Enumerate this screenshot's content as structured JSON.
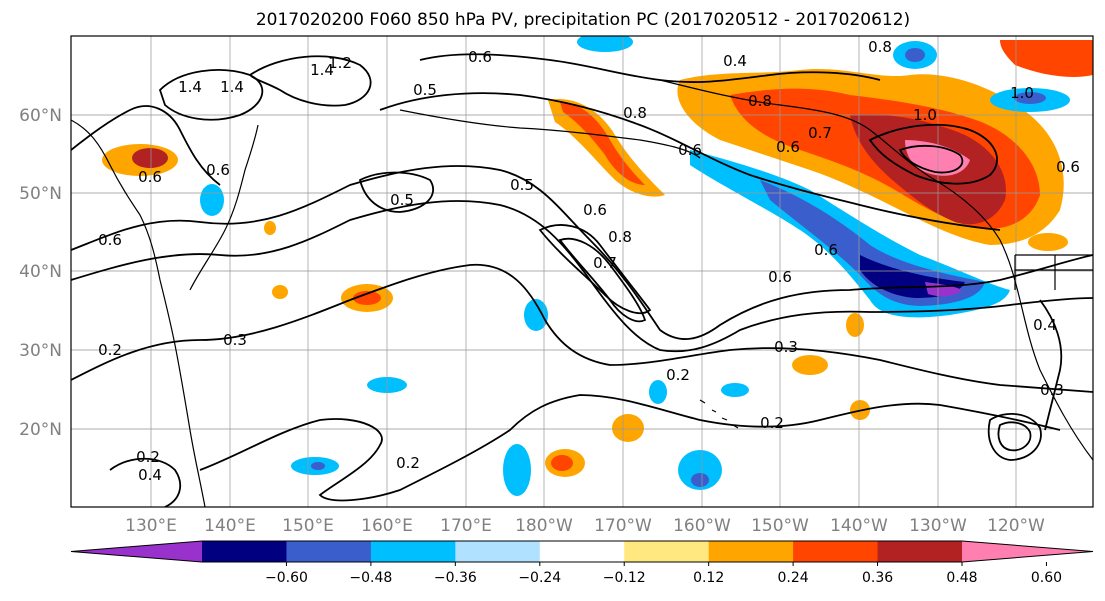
{
  "title": "2017020200 F060 850 hPa PV, precipitation PC (2017020512 - 2017020612)",
  "map": {
    "lat_labels": [
      "60°N",
      "50°N",
      "40°N",
      "30°N",
      "20°N"
    ],
    "lon_labels": [
      "130°E",
      "140°E",
      "150°E",
      "160°E",
      "170°E",
      "180°W",
      "170°W",
      "160°W",
      "150°W",
      "140°W",
      "130°W",
      "120°W"
    ],
    "contour_labels": [
      "1.4",
      "1.4",
      "1.2",
      "1.4",
      "0.6",
      "0.4",
      "0.8",
      "0.5",
      "0.8",
      "0.8",
      "0.6",
      "0.7",
      "1.0",
      "1.0",
      "0.6",
      "0.5",
      "0.6",
      "0.6",
      "0.6",
      "0.5",
      "0.7",
      "0.6",
      "0.6",
      "0.8",
      "0.6",
      "0.3",
      "0.2",
      "0.3",
      "0.2",
      "0.2",
      "0.2",
      "0.2",
      "0.4",
      "0.3",
      "0.6",
      "0.4"
    ]
  },
  "colorbar": {
    "ticks": [
      "−0.60",
      "−0.48",
      "−0.36",
      "−0.24",
      "−0.12",
      "0.12",
      "0.24",
      "0.36",
      "0.48",
      "0.60"
    ],
    "colors": [
      "#9932cc",
      "#000080",
      "#3a5fcd",
      "#00bfff",
      "#b0e2ff",
      "#ffffff",
      "#ffe880",
      "#ffa500",
      "#ff4500",
      "#b22222",
      "#ff7fb0"
    ]
  }
}
